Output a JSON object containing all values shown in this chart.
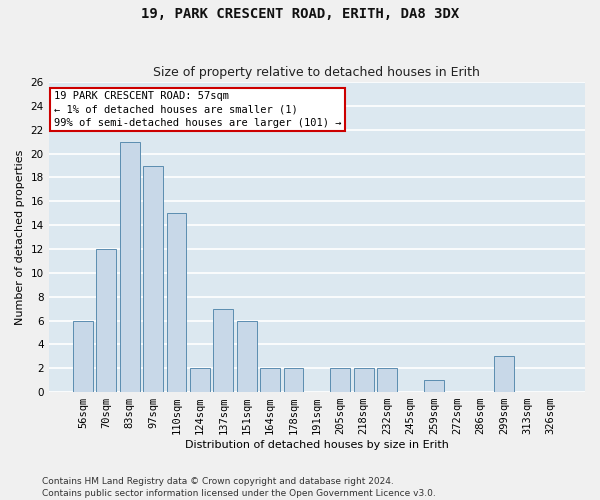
{
  "title": "19, PARK CRESCENT ROAD, ERITH, DA8 3DX",
  "subtitle": "Size of property relative to detached houses in Erith",
  "xlabel": "Distribution of detached houses by size in Erith",
  "ylabel": "Number of detached properties",
  "categories": [
    "56sqm",
    "70sqm",
    "83sqm",
    "97sqm",
    "110sqm",
    "124sqm",
    "137sqm",
    "151sqm",
    "164sqm",
    "178sqm",
    "191sqm",
    "205sqm",
    "218sqm",
    "232sqm",
    "245sqm",
    "259sqm",
    "272sqm",
    "286sqm",
    "299sqm",
    "313sqm",
    "326sqm"
  ],
  "values": [
    6,
    12,
    21,
    19,
    15,
    2,
    7,
    6,
    2,
    2,
    0,
    2,
    2,
    2,
    0,
    1,
    0,
    0,
    3,
    0,
    0
  ],
  "bar_color": "#c8d8e8",
  "bar_edge_color": "#5b8db0",
  "ylim": [
    0,
    26
  ],
  "yticks": [
    0,
    2,
    4,
    6,
    8,
    10,
    12,
    14,
    16,
    18,
    20,
    22,
    24,
    26
  ],
  "annotation_box_text": "19 PARK CRESCENT ROAD: 57sqm\n← 1% of detached houses are smaller (1)\n99% of semi-detached houses are larger (101) →",
  "annotation_box_color": "#cc0000",
  "annotation_box_fill": "#ffffff",
  "footer_line1": "Contains HM Land Registry data © Crown copyright and database right 2024.",
  "footer_line2": "Contains public sector information licensed under the Open Government Licence v3.0.",
  "background_color": "#dce8f0",
  "grid_color": "#ffffff",
  "fig_background": "#f0f0f0",
  "title_fontsize": 10,
  "subtitle_fontsize": 9,
  "axis_label_fontsize": 8,
  "tick_fontsize": 7.5,
  "annotation_fontsize": 7.5,
  "footer_fontsize": 6.5
}
